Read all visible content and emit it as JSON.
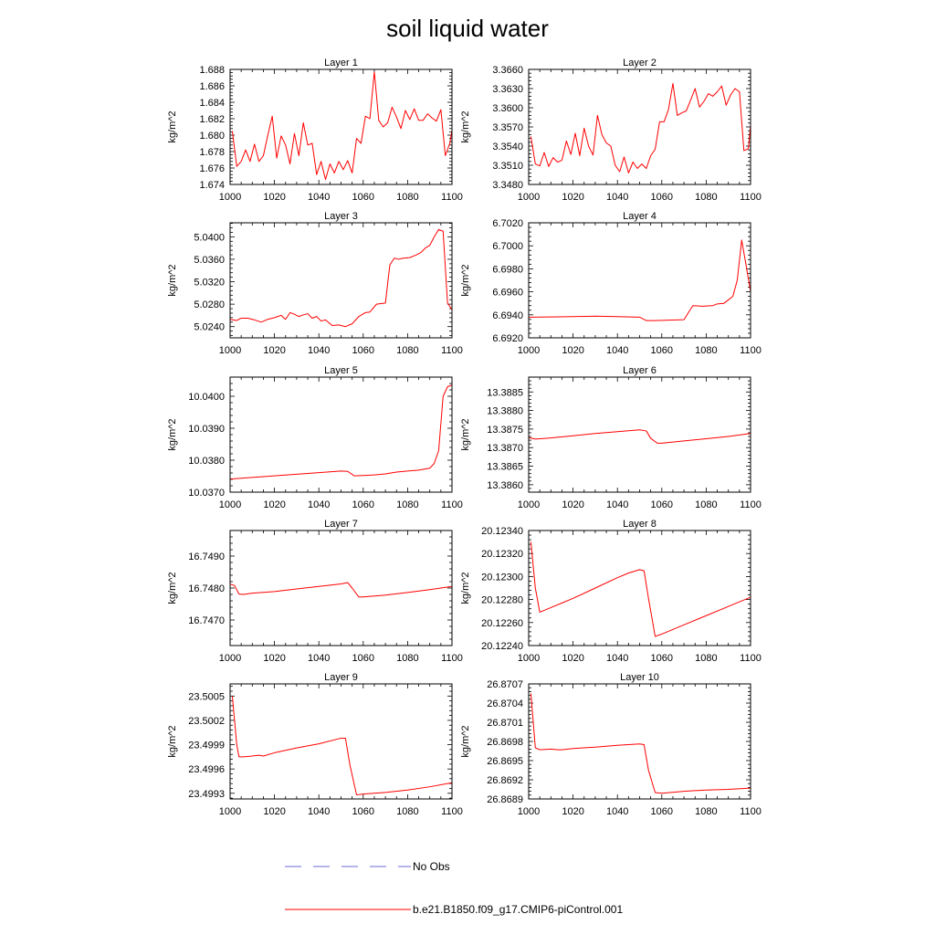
{
  "title": "soil liquid water",
  "legend": {
    "entries": [
      {
        "label": "No Obs",
        "color": "#6b6bd6",
        "dash": true
      },
      {
        "label": "b.e21.B1850.f09_g17.CMIP6-piControl.001",
        "color": "#ff0000",
        "dash": false
      }
    ]
  },
  "chart_data": [
    {
      "type": "line",
      "title": "Layer 1",
      "ylabel": "kg/m^2",
      "xlim": [
        1000,
        1100
      ],
      "ylim": [
        1.674,
        1.688
      ],
      "yticks": [
        "1.674",
        "1.676",
        "1.678",
        "1.680",
        "1.682",
        "1.684",
        "1.686",
        "1.688"
      ],
      "xticks": [
        "1000",
        "1020",
        "1040",
        "1060",
        "1080",
        "1100"
      ],
      "series": [
        {
          "color": "#ff0000",
          "x": [
            1001,
            1003,
            1005,
            1007,
            1009,
            1011,
            1013,
            1015,
            1017,
            1019,
            1021,
            1023,
            1025,
            1027,
            1029,
            1031,
            1033,
            1035,
            1037,
            1039,
            1041,
            1043,
            1045,
            1047,
            1049,
            1051,
            1053,
            1055,
            1057,
            1059,
            1061,
            1063,
            1065,
            1067,
            1069,
            1071,
            1073,
            1075,
            1077,
            1079,
            1081,
            1083,
            1085,
            1087,
            1089,
            1091,
            1093,
            1095,
            1097,
            1099,
            1100
          ],
          "y": [
            1.6805,
            1.6762,
            1.6768,
            1.6782,
            1.6768,
            1.6789,
            1.6768,
            1.6775,
            1.68,
            1.6823,
            1.6772,
            1.6799,
            1.6788,
            1.6765,
            1.6802,
            1.6775,
            1.6815,
            1.6788,
            1.679,
            1.6752,
            1.6768,
            1.6746,
            1.6765,
            1.6754,
            1.6768,
            1.6758,
            1.6769,
            1.6754,
            1.6796,
            1.679,
            1.6823,
            1.682,
            1.6877,
            1.6818,
            1.681,
            1.6815,
            1.6834,
            1.6822,
            1.6808,
            1.683,
            1.6819,
            1.6832,
            1.6818,
            1.6818,
            1.6826,
            1.6821,
            1.6817,
            1.6831,
            1.6775,
            1.679,
            1.6806
          ]
        }
      ]
    },
    {
      "type": "line",
      "title": "Layer 2",
      "ylabel": "kg/m^2",
      "xlim": [
        1000,
        1100
      ],
      "ylim": [
        3.348,
        3.366
      ],
      "yticks": [
        "3.3480",
        "3.3510",
        "3.3540",
        "3.3570",
        "3.3600",
        "3.3630",
        "3.3660"
      ],
      "xticks": [
        "1000",
        "1020",
        "1040",
        "1060",
        "1080",
        "1100"
      ],
      "series": [
        {
          "color": "#ff0000",
          "x": [
            1001,
            1003,
            1005,
            1007,
            1009,
            1011,
            1013,
            1015,
            1017,
            1019,
            1021,
            1023,
            1025,
            1027,
            1029,
            1031,
            1033,
            1035,
            1037,
            1039,
            1041,
            1043,
            1045,
            1047,
            1049,
            1051,
            1053,
            1055,
            1057,
            1059,
            1061,
            1063,
            1065,
            1067,
            1069,
            1071,
            1073,
            1075,
            1077,
            1079,
            1081,
            1083,
            1085,
            1087,
            1089,
            1091,
            1093,
            1095,
            1097,
            1099,
            1100
          ],
          "y": [
            3.3555,
            3.3512,
            3.3509,
            3.353,
            3.3508,
            3.3522,
            3.3515,
            3.3518,
            3.3548,
            3.3527,
            3.356,
            3.3525,
            3.3568,
            3.354,
            3.3526,
            3.3588,
            3.3558,
            3.3545,
            3.354,
            3.351,
            3.35,
            3.3523,
            3.3498,
            3.3515,
            3.3505,
            3.3512,
            3.3505,
            3.3525,
            3.3535,
            3.3578,
            3.3578,
            3.3597,
            3.3638,
            3.3588,
            3.3592,
            3.3595,
            3.3612,
            3.363,
            3.3601,
            3.361,
            3.3622,
            3.3618,
            3.3625,
            3.3634,
            3.3604,
            3.362,
            3.363,
            3.3625,
            3.3533,
            3.3536,
            3.3572
          ]
        }
      ]
    },
    {
      "type": "line",
      "title": "Layer 3",
      "ylabel": "kg/m^2",
      "xlim": [
        1000,
        1100
      ],
      "ylim": [
        5.022,
        5.0425
      ],
      "yticks": [
        "5.0240",
        "5.0280",
        "5.0320",
        "5.0360",
        "5.0400"
      ],
      "xticks": [
        "1000",
        "1020",
        "1040",
        "1060",
        "1080",
        "1100"
      ],
      "series": [
        {
          "color": "#ff0000",
          "x": [
            1000,
            1003,
            1005,
            1008,
            1011,
            1014,
            1017,
            1020,
            1023,
            1025,
            1027,
            1029,
            1031,
            1033,
            1035,
            1037,
            1039,
            1041,
            1043,
            1046,
            1049,
            1052,
            1055,
            1058,
            1061,
            1063,
            1066,
            1070,
            1072,
            1074,
            1076,
            1078,
            1081,
            1084,
            1086,
            1088,
            1090,
            1092,
            1094,
            1096,
            1098,
            1100
          ],
          "y": [
            5.0253,
            5.0251,
            5.0255,
            5.0255,
            5.0252,
            5.0248,
            5.0253,
            5.0256,
            5.026,
            5.0253,
            5.0265,
            5.0262,
            5.0258,
            5.0261,
            5.0263,
            5.0255,
            5.0258,
            5.025,
            5.0252,
            5.0242,
            5.0243,
            5.024,
            5.0245,
            5.0258,
            5.0265,
            5.0266,
            5.028,
            5.0282,
            5.035,
            5.0362,
            5.036,
            5.0362,
            5.0363,
            5.0368,
            5.0372,
            5.038,
            5.0385,
            5.04,
            5.0413,
            5.041,
            5.0282,
            5.027
          ]
        }
      ]
    },
    {
      "type": "line",
      "title": "Layer 4",
      "ylabel": "kg/m^2",
      "xlim": [
        1000,
        1100
      ],
      "ylim": [
        6.692,
        6.702
      ],
      "yticks": [
        "6.6920",
        "6.6940",
        "6.6960",
        "6.6980",
        "6.7000",
        "6.7020"
      ],
      "xticks": [
        "1000",
        "1020",
        "1040",
        "1060",
        "1080",
        "1100"
      ],
      "series": [
        {
          "color": "#ff0000",
          "x": [
            1000,
            1010,
            1020,
            1030,
            1040,
            1050,
            1053,
            1056,
            1060,
            1065,
            1070,
            1072,
            1074,
            1078,
            1083,
            1085,
            1088,
            1090,
            1092,
            1094,
            1096,
            1098,
            1100
          ],
          "y": [
            6.6938,
            6.69382,
            6.69385,
            6.69388,
            6.69385,
            6.6938,
            6.6935,
            6.6935,
            6.69352,
            6.69355,
            6.69358,
            6.6942,
            6.6948,
            6.69475,
            6.6948,
            6.69495,
            6.695,
            6.6953,
            6.6956,
            6.697,
            6.7005,
            6.6983,
            6.696
          ]
        }
      ]
    },
    {
      "type": "line",
      "title": "Layer 5",
      "ylabel": "kg/m^2",
      "xlim": [
        1000,
        1100
      ],
      "ylim": [
        10.037,
        10.0406
      ],
      "yticks": [
        "10.0370",
        "10.0380",
        "10.0390",
        "10.0400"
      ],
      "xticks": [
        "1000",
        "1020",
        "1040",
        "1060",
        "1080",
        "1100"
      ],
      "series": [
        {
          "color": "#ff0000",
          "x": [
            1000,
            1010,
            1020,
            1030,
            1040,
            1050,
            1053,
            1056,
            1060,
            1065,
            1070,
            1075,
            1080,
            1085,
            1090,
            1092,
            1094,
            1096,
            1098,
            1100
          ],
          "y": [
            10.03741,
            10.03746,
            10.03751,
            10.03756,
            10.03761,
            10.03766,
            10.03765,
            10.03751,
            10.03752,
            10.03754,
            10.03757,
            10.03763,
            10.03766,
            10.03769,
            10.03775,
            10.0379,
            10.0383,
            10.04,
            10.0403,
            10.04035
          ]
        }
      ]
    },
    {
      "type": "line",
      "title": "Layer 6",
      "ylabel": "kg/m^2",
      "xlim": [
        1000,
        1100
      ],
      "ylim": [
        13.3858,
        13.3889
      ],
      "yticks": [
        "13.3860",
        "13.3865",
        "13.3870",
        "13.3875",
        "13.3880",
        "13.3885"
      ],
      "xticks": [
        "1000",
        "1020",
        "1040",
        "1060",
        "1080",
        "1100"
      ],
      "series": [
        {
          "color": "#ff0000",
          "x": [
            1000,
            1003,
            1010,
            1020,
            1030,
            1040,
            1050,
            1053,
            1055,
            1058,
            1060,
            1070,
            1080,
            1090,
            1100
          ],
          "y": [
            13.38727,
            13.38723,
            13.38726,
            13.38732,
            13.38738,
            13.38743,
            13.38748,
            13.38745,
            13.38725,
            13.38712,
            13.38712,
            13.38718,
            13.38724,
            13.3873,
            13.38738
          ]
        }
      ]
    },
    {
      "type": "line",
      "title": "Layer 7",
      "ylabel": "kg/m^2",
      "xlim": [
        1000,
        1100
      ],
      "ylim": [
        16.7462,
        16.7498
      ],
      "yticks": [
        "16.7470",
        "16.7480",
        "16.7490"
      ],
      "xticks": [
        "1000",
        "1020",
        "1040",
        "1060",
        "1080",
        "1100"
      ],
      "series": [
        {
          "color": "#ff0000",
          "x": [
            1000,
            1002,
            1004,
            1006,
            1010,
            1020,
            1030,
            1040,
            1050,
            1053,
            1055,
            1058,
            1060,
            1070,
            1080,
            1090,
            1100
          ],
          "y": [
            16.74812,
            16.74808,
            16.74781,
            16.7478,
            16.74784,
            16.74789,
            16.74797,
            16.74805,
            16.74813,
            16.74817,
            16.748,
            16.74772,
            16.74772,
            16.74778,
            16.74786,
            16.74795,
            16.74805
          ]
        }
      ]
    },
    {
      "type": "line",
      "title": "Layer 8",
      "ylabel": "kg/m^2",
      "xlim": [
        1000,
        1100
      ],
      "ylim": [
        20.1224,
        20.1234
      ],
      "yticks": [
        "20.12240",
        "20.12260",
        "20.12280",
        "20.12300",
        "20.12320",
        "20.12340"
      ],
      "xticks": [
        "1000",
        "1020",
        "1040",
        "1060",
        "1080",
        "1100"
      ],
      "series": [
        {
          "color": "#ff0000",
          "x": [
            1001,
            1003,
            1005,
            1010,
            1015,
            1020,
            1030,
            1040,
            1045,
            1050,
            1052,
            1054,
            1057,
            1060,
            1070,
            1080,
            1090,
            1100
          ],
          "y": [
            20.1233,
            20.1229,
            20.12269,
            20.12273,
            20.12277,
            20.12281,
            20.1229,
            20.12299,
            20.12303,
            20.12306,
            20.12305,
            20.12281,
            20.12248,
            20.1225,
            20.12258,
            20.12266,
            20.12274,
            20.12282
          ]
        }
      ]
    },
    {
      "type": "line",
      "title": "Layer 9",
      "ylabel": "kg/m^2",
      "xlim": [
        1000,
        1100
      ],
      "ylim": [
        23.49923,
        23.50065
      ],
      "yticks": [
        "23.4993",
        "23.4996",
        "23.4999",
        "23.5002",
        "23.5005"
      ],
      "xticks": [
        "1000",
        "1020",
        "1040",
        "1060",
        "1080",
        "1100"
      ],
      "series": [
        {
          "color": "#ff0000",
          "x": [
            1001,
            1003,
            1004,
            1006,
            1010,
            1013,
            1015,
            1020,
            1030,
            1040,
            1050,
            1052,
            1054,
            1057,
            1060,
            1070,
            1080,
            1090,
            1100
          ],
          "y": [
            23.5005,
            23.4999,
            23.49975,
            23.49975,
            23.49976,
            23.49977,
            23.49976,
            23.4998,
            23.49986,
            23.49991,
            23.49998,
            23.49998,
            23.49965,
            23.49928,
            23.49929,
            23.49931,
            23.49934,
            23.49938,
            23.49943
          ]
        }
      ]
    },
    {
      "type": "line",
      "title": "Layer 10",
      "ylabel": "kg/m^2",
      "xlim": [
        1000,
        1100
      ],
      "ylim": [
        26.8689,
        26.8707
      ],
      "yticks": [
        "26.8689",
        "26.8692",
        "26.8695",
        "26.8698",
        "26.8701",
        "26.8704",
        "26.8707"
      ],
      "xticks": [
        "1000",
        "1020",
        "1040",
        "1060",
        "1080",
        "1100"
      ],
      "series": [
        {
          "color": "#ff0000",
          "x": [
            1001,
            1003,
            1005,
            1010,
            1013,
            1015,
            1020,
            1030,
            1040,
            1050,
            1052,
            1054,
            1057,
            1060,
            1070,
            1080,
            1090,
            1100
          ],
          "y": [
            26.87055,
            26.8697,
            26.86967,
            26.86968,
            26.86967,
            26.86967,
            26.86969,
            26.86971,
            26.86974,
            26.86976,
            26.86975,
            26.86935,
            26.869,
            26.86899,
            26.86902,
            26.86904,
            26.86905,
            26.86907
          ]
        }
      ]
    }
  ]
}
